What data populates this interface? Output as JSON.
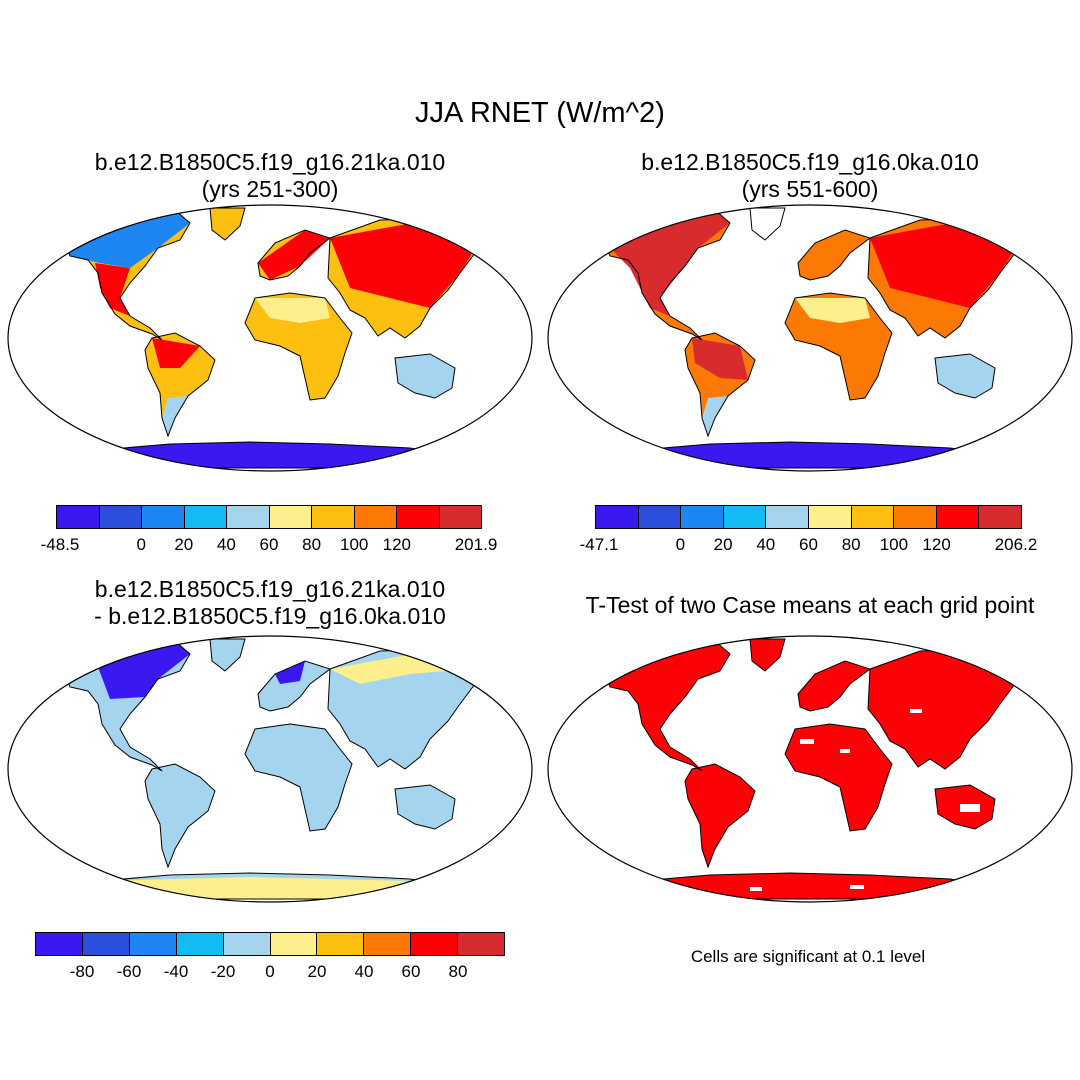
{
  "title": "JJA RNET (W/m^2)",
  "panels": [
    {
      "title_line1": "b.e12.B1850C5.f19_g16.21ka.010",
      "title_line2": "(yrs 251-300)",
      "colorbar": {
        "colors": [
          "#3a18f0",
          "#2b4fdc",
          "#1e86f3",
          "#14bcf5",
          "#a4d4ee",
          "#fdf08c",
          "#fdbf10",
          "#fc7a04",
          "#fc0207",
          "#d72b2e"
        ],
        "tick_labels": [
          "-48.5",
          "0",
          "20",
          "40",
          "60",
          "80",
          "100",
          "120",
          "201.9"
        ]
      }
    },
    {
      "title_line1": "b.e12.B1850C5.f19_g16.0ka.010",
      "title_line2": "(yrs 551-600)",
      "colorbar": {
        "colors": [
          "#3a18f0",
          "#2b4fdc",
          "#1e86f3",
          "#14bcf5",
          "#a4d4ee",
          "#fdf08c",
          "#fdbf10",
          "#fc7a04",
          "#fc0207",
          "#d72b2e"
        ],
        "tick_labels": [
          "-47.1",
          "0",
          "20",
          "40",
          "60",
          "80",
          "100",
          "120",
          "206.2"
        ]
      }
    },
    {
      "title_line1": "b.e12.B1850C5.f19_g16.21ka.010",
      "title_line2": "- b.e12.B1850C5.f19_g16.0ka.010",
      "colorbar": {
        "colors": [
          "#3a18f0",
          "#2b4fdc",
          "#1e86f3",
          "#14bcf5",
          "#a4d4ee",
          "#fdf08c",
          "#fdbf10",
          "#fc7a04",
          "#fc0207",
          "#d72b2e"
        ],
        "tick_labels": [
          "-80",
          "-60",
          "-40",
          "-20",
          "0",
          "20",
          "40",
          "60",
          "80"
        ]
      }
    },
    {
      "title_line1": "T-Test of two Case means at each grid point",
      "note": "Cells are significant at 0.1 level",
      "significant_color": "#fc0207"
    }
  ]
}
